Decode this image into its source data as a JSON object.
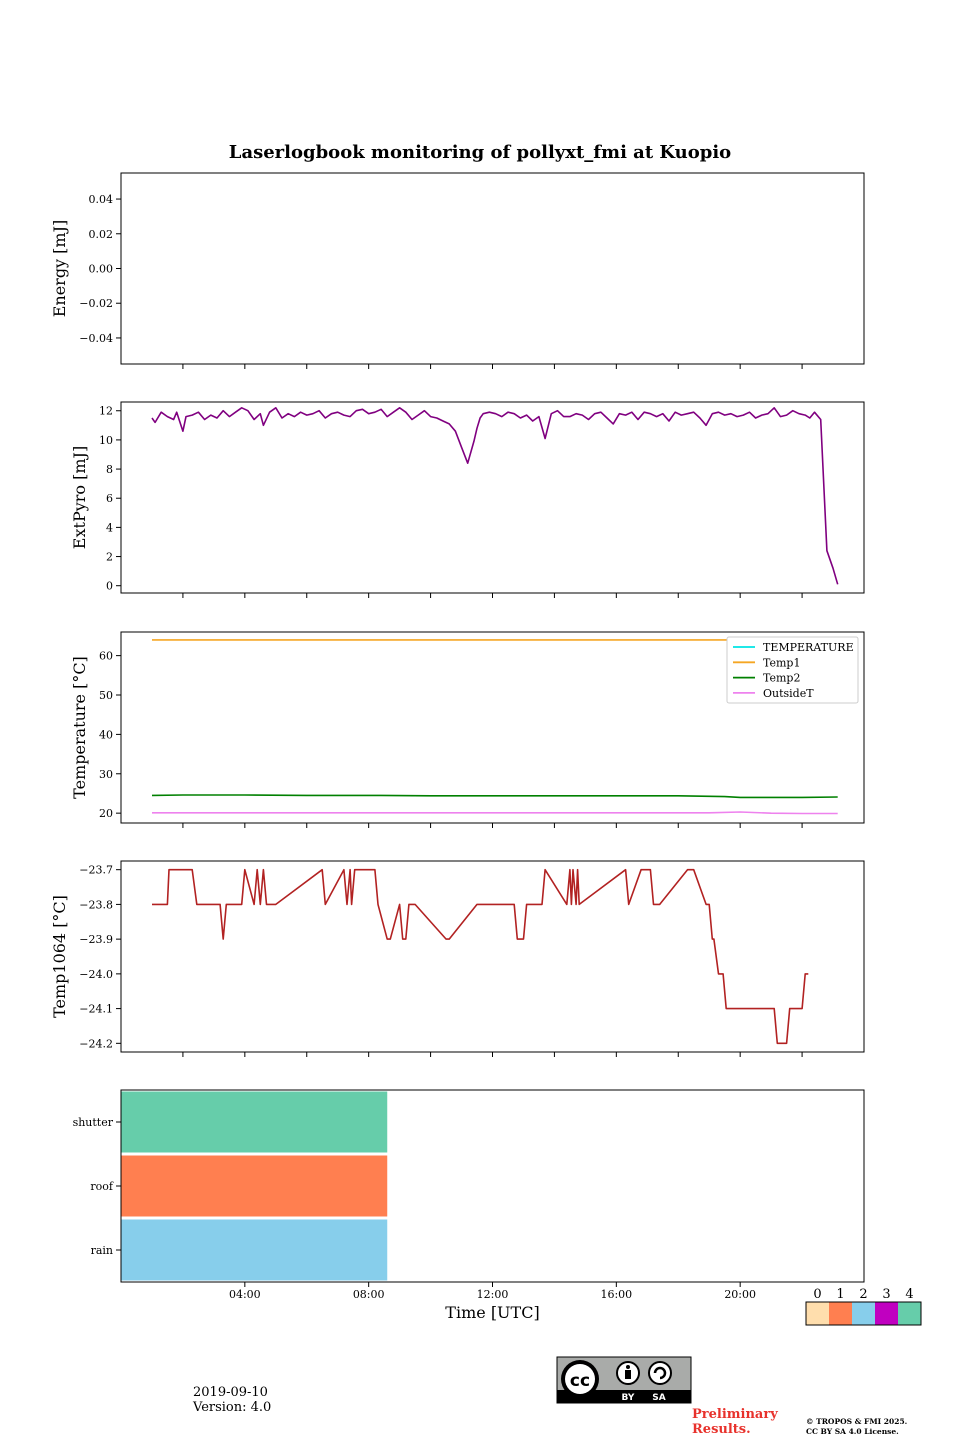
{
  "title": "Laserlogbook monitoring of pollyxt_fmi at Kuopio",
  "date_text": "2019-09-10",
  "version_text": "Version: 4.0",
  "preliminary_line1": "Preliminary",
  "preliminary_line2": "Results.",
  "copyright_line1": "© TROPOS & FMI 2025.",
  "copyright_line2": "CC BY SA 4.0 License.",
  "license_badge": {
    "cc": "cc",
    "by": "BY",
    "sa": "SA"
  },
  "colors": {
    "extpyro": "#800080",
    "temperature": "#00e5e5",
    "temp1": "#f5a623",
    "temp2": "#008000",
    "outside": "#ee82ee",
    "temp1064": "#b22222",
    "shutter": "#66cdaa",
    "roof": "#ff7f50",
    "rain": "#87ceeb",
    "prelim": "#e8322c"
  },
  "chart_data": [
    {
      "type": "line",
      "id": "energy",
      "ylabel": "Energy [mJ]",
      "ylim": [
        -0.055,
        0.055
      ],
      "yticks": [
        -0.04,
        -0.02,
        0.0,
        0.02,
        0.04
      ],
      "ytick_labels": [
        "−0.04",
        "−0.02",
        "0.00",
        "0.02",
        "0.04"
      ],
      "series": []
    },
    {
      "type": "line",
      "id": "extpyro",
      "ylabel": "ExtPyro [mJ]",
      "ylim": [
        -0.5,
        12.6
      ],
      "yticks": [
        0,
        2,
        4,
        6,
        8,
        10,
        12
      ],
      "ytick_labels": [
        "0",
        "2",
        "4",
        "6",
        "8",
        "10",
        "12"
      ],
      "series": [
        {
          "name": "ExtPyro",
          "x": [
            1.0,
            1.1,
            1.3,
            1.5,
            1.7,
            1.8,
            2.0,
            2.1,
            2.3,
            2.5,
            2.7,
            2.9,
            3.1,
            3.3,
            3.5,
            3.7,
            3.9,
            4.1,
            4.3,
            4.5,
            4.6,
            4.8,
            5.0,
            5.2,
            5.4,
            5.6,
            5.8,
            6.0,
            6.2,
            6.4,
            6.6,
            6.8,
            7.0,
            7.2,
            7.4,
            7.6,
            7.8,
            8.0,
            8.2,
            8.4,
            8.6,
            8.8,
            9.0,
            9.2,
            9.4,
            9.6,
            9.8,
            10.0,
            10.2,
            10.4,
            10.6,
            10.8,
            11.0,
            11.2,
            11.4,
            11.5,
            11.6,
            11.7,
            11.9,
            12.1,
            12.3,
            12.5,
            12.7,
            12.9,
            13.1,
            13.3,
            13.5,
            13.7,
            13.9,
            14.1,
            14.3,
            14.5,
            14.7,
            14.9,
            15.1,
            15.3,
            15.5,
            15.7,
            15.9,
            16.1,
            16.3,
            16.5,
            16.7,
            16.9,
            17.1,
            17.3,
            17.5,
            17.7,
            17.9,
            18.1,
            18.3,
            18.5,
            18.7,
            18.9,
            19.1,
            19.3,
            19.5,
            19.7,
            19.9,
            20.1,
            20.3,
            20.5,
            20.7,
            20.9,
            21.1,
            21.3,
            21.5,
            21.7,
            21.9,
            22.1,
            22.25,
            22.4,
            22.6,
            22.8,
            23.0,
            23.15
          ],
          "y": [
            11.5,
            11.2,
            11.9,
            11.6,
            11.4,
            11.9,
            10.6,
            11.6,
            11.7,
            11.9,
            11.4,
            11.7,
            11.5,
            12.0,
            11.6,
            11.9,
            12.2,
            12.0,
            11.4,
            11.8,
            11.0,
            11.9,
            12.2,
            11.5,
            11.8,
            11.6,
            11.9,
            11.7,
            11.8,
            12.0,
            11.5,
            11.8,
            11.9,
            11.7,
            11.6,
            12.0,
            12.1,
            11.8,
            11.9,
            12.1,
            11.6,
            11.9,
            12.2,
            11.9,
            11.4,
            11.7,
            12.0,
            11.6,
            11.5,
            11.3,
            11.1,
            10.6,
            9.5,
            8.4,
            9.9,
            10.8,
            11.5,
            11.8,
            11.9,
            11.8,
            11.6,
            11.9,
            11.8,
            11.5,
            11.7,
            11.3,
            11.6,
            10.1,
            11.8,
            12.0,
            11.6,
            11.6,
            11.8,
            11.7,
            11.4,
            11.8,
            11.9,
            11.5,
            11.1,
            11.8,
            11.7,
            11.9,
            11.4,
            11.9,
            11.8,
            11.6,
            11.8,
            11.3,
            11.9,
            11.7,
            11.8,
            11.9,
            11.5,
            11.0,
            11.8,
            11.9,
            11.7,
            11.8,
            11.6,
            11.7,
            11.9,
            11.5,
            11.7,
            11.8,
            12.2,
            11.6,
            11.7,
            12.0,
            11.8,
            11.7,
            11.5,
            11.9,
            11.4,
            2.4,
            1.2,
            0.1
          ]
        }
      ]
    },
    {
      "type": "line",
      "id": "temperature",
      "ylabel": "Temperature [°C]",
      "ylim": [
        17.5,
        66.0
      ],
      "yticks": [
        20,
        30,
        40,
        50,
        60
      ],
      "ytick_labels": [
        "20",
        "30",
        "40",
        "50",
        "60"
      ],
      "legend": [
        "TEMPERATURE",
        "Temp1",
        "Temp2",
        "OutsideT"
      ],
      "legend_position": "upper right",
      "series": [
        {
          "name": "TEMPERATURE",
          "x": [],
          "y": []
        },
        {
          "name": "Temp1",
          "x": [
            1.0,
            23.15
          ],
          "y": [
            64.0,
            64.0
          ]
        },
        {
          "name": "Temp2",
          "x": [
            1.0,
            2.0,
            4.0,
            6.0,
            8.0,
            10.0,
            12.0,
            14.0,
            16.0,
            18.0,
            19.5,
            20.0,
            22.0,
            23.15
          ],
          "y": [
            24.5,
            24.6,
            24.6,
            24.5,
            24.5,
            24.4,
            24.4,
            24.4,
            24.4,
            24.4,
            24.2,
            24.0,
            24.0,
            24.1
          ]
        },
        {
          "name": "OutsideT",
          "x": [
            1.0,
            4.0,
            8.0,
            12.0,
            16.0,
            19.0,
            20.0,
            21.0,
            22.0,
            23.15
          ],
          "y": [
            20.1,
            20.1,
            20.1,
            20.1,
            20.1,
            20.1,
            20.3,
            20.0,
            19.9,
            19.9
          ]
        }
      ]
    },
    {
      "type": "line",
      "id": "temp1064",
      "ylabel": "Temp1064 [°C]",
      "ylim": [
        -24.225,
        -23.675
      ],
      "yticks": [
        -24.2,
        -24.1,
        -24.0,
        -23.9,
        -23.8,
        -23.7
      ],
      "ytick_labels": [
        "−24.2",
        "−24.1",
        "−24.0",
        "−23.9",
        "−23.8",
        "−23.7"
      ],
      "series": [
        {
          "name": "Temp1064",
          "x": [
            1.0,
            1.5,
            1.55,
            2.3,
            2.45,
            3.2,
            3.3,
            3.4,
            3.9,
            4.0,
            4.3,
            4.4,
            4.5,
            4.6,
            4.7,
            4.8,
            5.0,
            6.5,
            6.6,
            7.2,
            7.3,
            7.4,
            7.45,
            7.55,
            7.6,
            8.2,
            8.3,
            8.6,
            8.7,
            9.0,
            9.1,
            9.2,
            9.3,
            9.5,
            10.5,
            10.6,
            11.5,
            11.6,
            12.7,
            12.8,
            13.0,
            13.1,
            13.6,
            13.7,
            14.4,
            14.5,
            14.55,
            14.6,
            14.7,
            14.75,
            14.8,
            16.3,
            16.4,
            16.8,
            16.9,
            17.1,
            17.2,
            17.4,
            18.3,
            18.5,
            18.9,
            19.0,
            19.1,
            19.15,
            19.3,
            19.45,
            19.55,
            19.8,
            19.9,
            21.1,
            21.2,
            21.5,
            21.6,
            22.0,
            22.1,
            22.2
          ],
          "y": [
            -23.8,
            -23.8,
            -23.7,
            -23.7,
            -23.8,
            -23.8,
            -23.9,
            -23.8,
            -23.8,
            -23.7,
            -23.8,
            -23.7,
            -23.8,
            -23.7,
            -23.8,
            -23.8,
            -23.8,
            -23.7,
            -23.8,
            -23.7,
            -23.8,
            -23.7,
            -23.8,
            -23.7,
            -23.7,
            -23.7,
            -23.8,
            -23.9,
            -23.9,
            -23.8,
            -23.9,
            -23.9,
            -23.8,
            -23.8,
            -23.9,
            -23.9,
            -23.8,
            -23.8,
            -23.8,
            -23.9,
            -23.9,
            -23.8,
            -23.8,
            -23.7,
            -23.8,
            -23.7,
            -23.8,
            -23.7,
            -23.8,
            -23.7,
            -23.8,
            -23.7,
            -23.8,
            -23.7,
            -23.7,
            -23.7,
            -23.8,
            -23.8,
            -23.7,
            -23.7,
            -23.8,
            -23.8,
            -23.9,
            -23.9,
            -24.0,
            -24.0,
            -24.1,
            -24.1,
            -24.1,
            -24.1,
            -24.2,
            -24.2,
            -24.1,
            -24.1,
            -24.0,
            -24.0
          ]
        }
      ]
    },
    {
      "type": "heatmap",
      "id": "status",
      "xlabel": "Time [UTC]",
      "xlim": [
        0,
        24
      ],
      "xticks": [
        4,
        8,
        12,
        16,
        20
      ],
      "xtick_labels": [
        "04:00",
        "08:00",
        "12:00",
        "16:00",
        "20:00"
      ],
      "rows": [
        "shutter",
        "roof",
        "rain"
      ],
      "row_values": [
        4,
        1,
        2
      ],
      "filled_until": 8.6,
      "colorbar": {
        "labels": [
          "0",
          "1",
          "2",
          "3",
          "4"
        ],
        "colors": [
          "#ffdead",
          "#ff7f50",
          "#87ceeb",
          "#c000c0",
          "#66cdaa"
        ]
      }
    }
  ]
}
